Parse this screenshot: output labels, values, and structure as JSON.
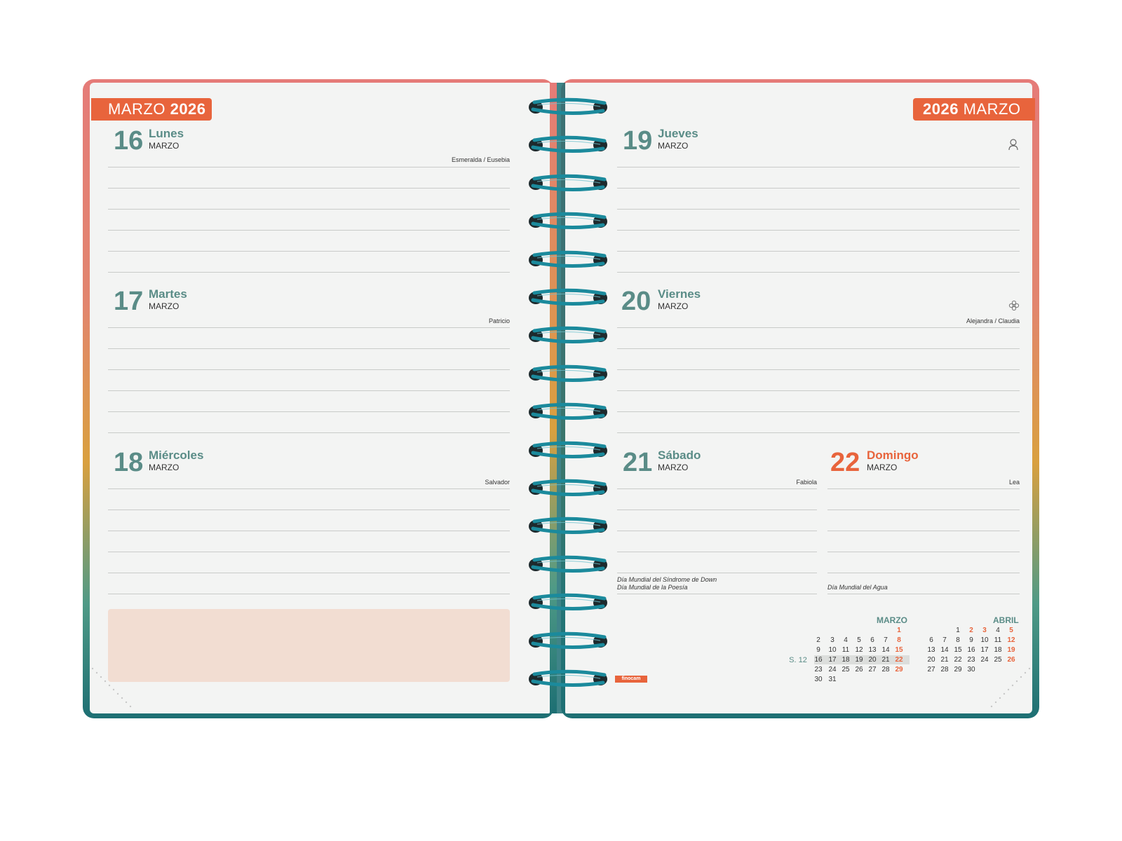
{
  "left_page": {
    "tab": {
      "month": "MARZO",
      "year": "2026"
    },
    "days": [
      {
        "num": "16",
        "name": "Lunes",
        "month": "MARZO",
        "saint": "Esmeralda / Eusebia",
        "events": []
      },
      {
        "num": "17",
        "name": "Martes",
        "month": "MARZO",
        "saint": "Patricio",
        "events": []
      },
      {
        "num": "18",
        "name": "Miércoles",
        "month": "MARZO",
        "saint": "Salvador",
        "events": []
      }
    ]
  },
  "right_page": {
    "tab": {
      "year": "2026",
      "month": "MARZO"
    },
    "days": [
      {
        "num": "19",
        "name": "Jueves",
        "month": "MARZO",
        "saint": "",
        "icon": "father-figure-icon",
        "events": []
      },
      {
        "num": "20",
        "name": "Viernes",
        "month": "MARZO",
        "saint": "Alejandra / Claudia",
        "icon": "flower-icon",
        "events": []
      },
      {
        "num": "21",
        "name": "Sábado",
        "month": "MARZO",
        "saint": "Fabiola",
        "events": [
          "Día Mundial del Síndrome de Down",
          "Día Mundial de la Poesía"
        ]
      },
      {
        "num": "22",
        "name": "Domingo",
        "month": "MARZO",
        "saint": "Lea",
        "events": [
          "Día Mundial del Agua"
        ]
      }
    ],
    "brand": "finocam"
  },
  "mini_calendars": {
    "week_label": "S. 12",
    "months": [
      {
        "title": "MARZO",
        "weeks": [
          [
            "",
            "",
            "",
            "",
            "",
            "",
            "1"
          ],
          [
            "2",
            "3",
            "4",
            "5",
            "6",
            "7",
            "8"
          ],
          [
            "9",
            "10",
            "11",
            "12",
            "13",
            "14",
            "15"
          ],
          [
            "16",
            "17",
            "18",
            "19",
            "20",
            "21",
            "22"
          ],
          [
            "23",
            "24",
            "25",
            "26",
            "27",
            "28",
            "29"
          ],
          [
            "30",
            "31",
            "",
            "",
            "",
            "",
            ""
          ]
        ]
      },
      {
        "title": "ABRIL",
        "weeks": [
          [
            "",
            "",
            "1",
            "2",
            "3",
            "4",
            "5"
          ],
          [
            "6",
            "7",
            "8",
            "9",
            "10",
            "11",
            "12"
          ],
          [
            "13",
            "14",
            "15",
            "16",
            "17",
            "18",
            "19"
          ],
          [
            "20",
            "21",
            "22",
            "23",
            "24",
            "25",
            "26"
          ],
          [
            "27",
            "28",
            "29",
            "30",
            "",
            "",
            ""
          ]
        ]
      }
    ],
    "red_days": {
      "MARZO": [
        "1",
        "8",
        "15",
        "22",
        "29"
      ],
      "ABRIL": [
        "2",
        "3",
        "5",
        "12",
        "19",
        "26"
      ]
    }
  },
  "colors": {
    "accent_orange": "#e8643c",
    "teal_text": "#5a8c87",
    "ring_teal": "#1b8a9c",
    "notes_fill": "#f2ddd2",
    "page_bg": "#f3f4f3"
  }
}
